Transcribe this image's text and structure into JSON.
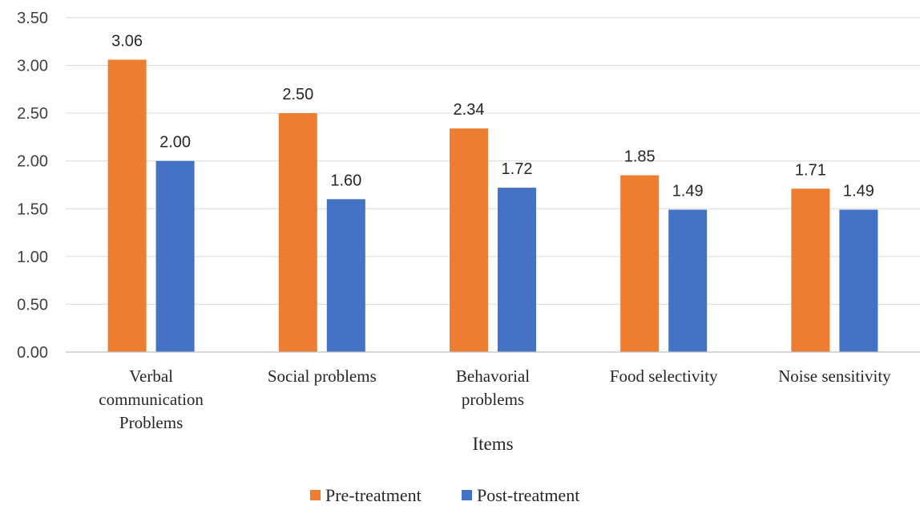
{
  "chart_data": {
    "type": "bar",
    "categories": [
      [
        "Verbal",
        "communication",
        "Problems"
      ],
      [
        "Social problems"
      ],
      [
        "Behavorial",
        "problems"
      ],
      [
        "Food selectivity"
      ],
      [
        "Noise sensitivity"
      ]
    ],
    "series": [
      {
        "name": "Pre-treatment",
        "color": "#ED7D31",
        "values": [
          3.06,
          2.5,
          2.34,
          1.85,
          1.71
        ]
      },
      {
        "name": "Post-treatment",
        "color": "#4472C4",
        "values": [
          2.0,
          1.6,
          1.72,
          1.49,
          1.49
        ]
      }
    ],
    "xlabel": "Items",
    "ylabel": "",
    "ylim": [
      0,
      3.5
    ],
    "yticks": [
      "0.00",
      "0.50",
      "1.00",
      "1.50",
      "2.00",
      "2.50",
      "3.00",
      "3.50"
    ],
    "grid": true,
    "legend_position": "bottom-center",
    "data_labels": true
  }
}
